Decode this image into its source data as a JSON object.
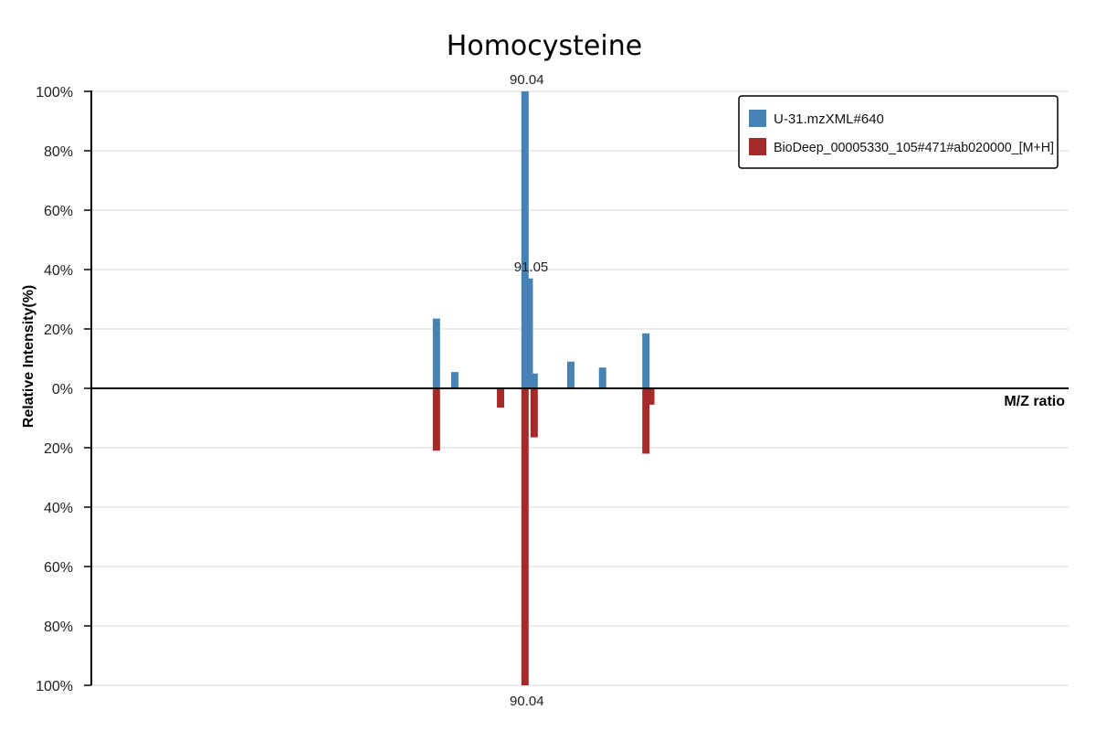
{
  "chart_data": {
    "type": "bar",
    "title": "Homocysteine",
    "xlabel": "M/Z ratio",
    "ylabel": "Relative Intensity(%)",
    "y_ticks": [
      "100%",
      "80%",
      "60%",
      "40%",
      "20%",
      "0%",
      "20%",
      "40%",
      "60%",
      "80%",
      "100%"
    ],
    "ylim_top": [
      0,
      100
    ],
    "ylim_bottom": [
      0,
      100
    ],
    "xlim": [
      0,
      160
    ],
    "grid": true,
    "legend_position": "top-right",
    "series": [
      {
        "name": "U-31.mzXML#640",
        "color": "#4682b4",
        "direction": "up",
        "points": [
          {
            "mz": 56.5,
            "intensity": 23.5
          },
          {
            "mz": 59.5,
            "intensity": 5.5
          },
          {
            "mz": 71.0,
            "intensity": 100,
            "label": "90.04"
          },
          {
            "mz": 71.7,
            "intensity": 37,
            "label": "91.05"
          },
          {
            "mz": 72.5,
            "intensity": 5.0
          },
          {
            "mz": 78.5,
            "intensity": 9.0
          },
          {
            "mz": 83.7,
            "intensity": 7.0
          },
          {
            "mz": 90.8,
            "intensity": 18.5
          }
        ]
      },
      {
        "name": "BioDeep_00005330_105#471#ab020000_[M+H]",
        "color": "#a52a2a",
        "direction": "down",
        "points": [
          {
            "mz": 56.5,
            "intensity": 21.0
          },
          {
            "mz": 67.0,
            "intensity": 6.5
          },
          {
            "mz": 71.0,
            "intensity": 100,
            "label": "90.04"
          },
          {
            "mz": 72.5,
            "intensity": 16.5
          },
          {
            "mz": 90.8,
            "intensity": 22.0
          },
          {
            "mz": 91.6,
            "intensity": 5.5
          }
        ]
      }
    ]
  }
}
